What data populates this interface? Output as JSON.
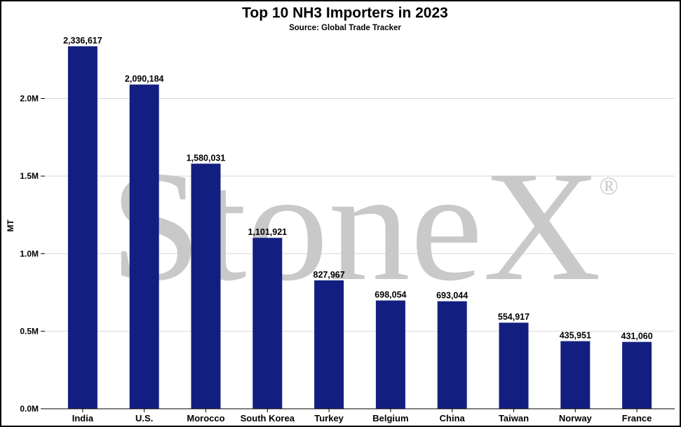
{
  "watermark": {
    "text": "StoneX",
    "mark": "®"
  },
  "chart_data": {
    "type": "bar",
    "title": "Top 10 NH3 Importers in 2023",
    "subtitle": "Source: Global Trade Tracker",
    "xlabel": "",
    "ylabel": "MT",
    "ylim": [
      0,
      2400000
    ],
    "yticks": [
      0,
      500000,
      1000000,
      1500000,
      2000000
    ],
    "ytick_labels": [
      "0.0M",
      "0.5M",
      "1.0M",
      "1.5M",
      "2.0M"
    ],
    "grid": true,
    "legend": "none",
    "bar_color": "#131f80",
    "categories": [
      "India",
      "U.S.",
      "Morocco",
      "South Korea",
      "Turkey",
      "Belgium",
      "China",
      "Taiwan",
      "Norway",
      "France"
    ],
    "values": [
      2336617,
      2090184,
      1580031,
      1101921,
      827967,
      698054,
      693044,
      554917,
      435951,
      431060
    ],
    "data_labels": [
      "2,336,617",
      "2,090,184",
      "1,580,031",
      "1,101,921",
      "827,967",
      "698,054",
      "693,044",
      "554,917",
      "435,951",
      "431,060"
    ]
  }
}
